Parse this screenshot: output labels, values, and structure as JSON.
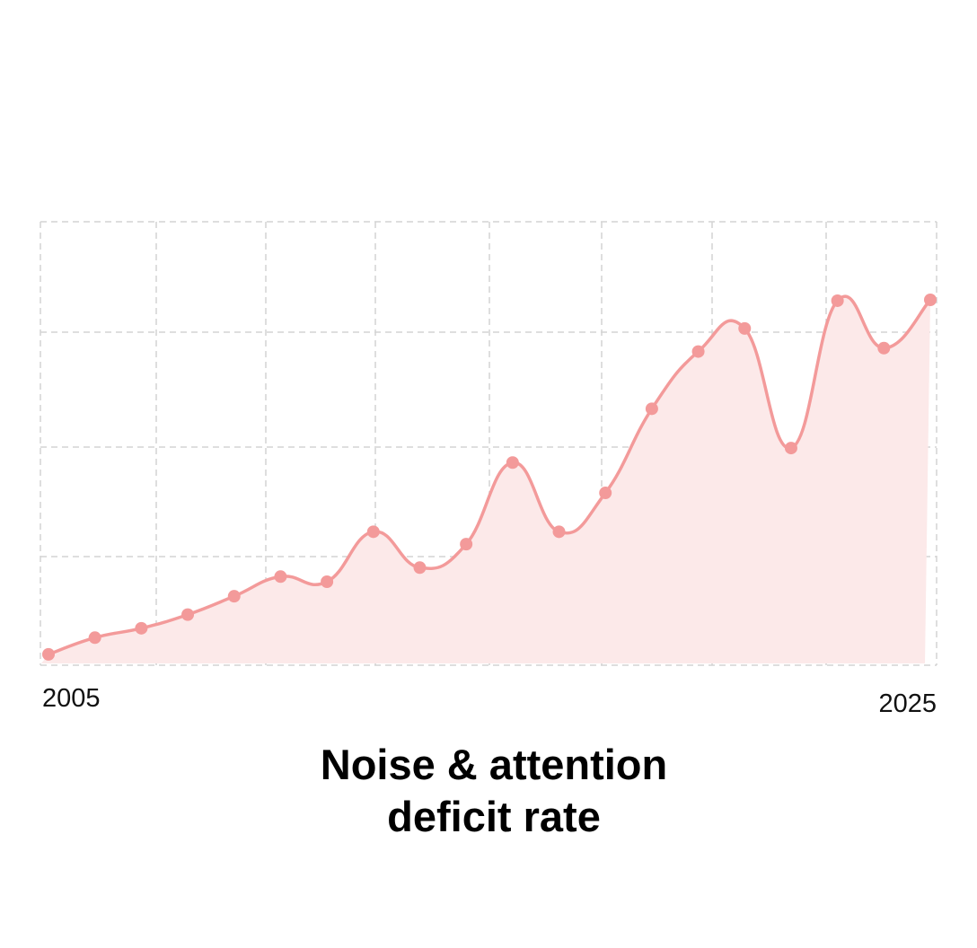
{
  "chart_data": {
    "type": "area",
    "title_lines": [
      "Noise & attention",
      "deficit rate"
    ],
    "xlabel": "",
    "ylabel": "",
    "x_tick_labels": [
      "2005",
      "2025"
    ],
    "x": [
      2005,
      2006,
      2007,
      2008,
      2009,
      2010,
      2011,
      2012,
      2013,
      2014,
      2015,
      2016,
      2017,
      2018,
      2019,
      2020,
      2021,
      2022,
      2023,
      2024
    ],
    "xlim": [
      2005,
      2024
    ],
    "ylim": [
      0,
      100
    ],
    "series": [
      {
        "values": [
          1.5,
          5.4,
          7.6,
          10.8,
          15.1,
          19.7,
          18.5,
          30.2,
          21.8,
          27.3,
          46.4,
          30.2,
          39.3,
          59.0,
          72.4,
          77.8,
          49.8,
          84.3,
          73.2,
          84.5
        ]
      }
    ],
    "grid": true,
    "legend": "none",
    "colors": {
      "line": "#f39a9a",
      "fill": "#fce9e9",
      "marker": "#f39a9a",
      "grid": "#d4d4d4"
    }
  }
}
